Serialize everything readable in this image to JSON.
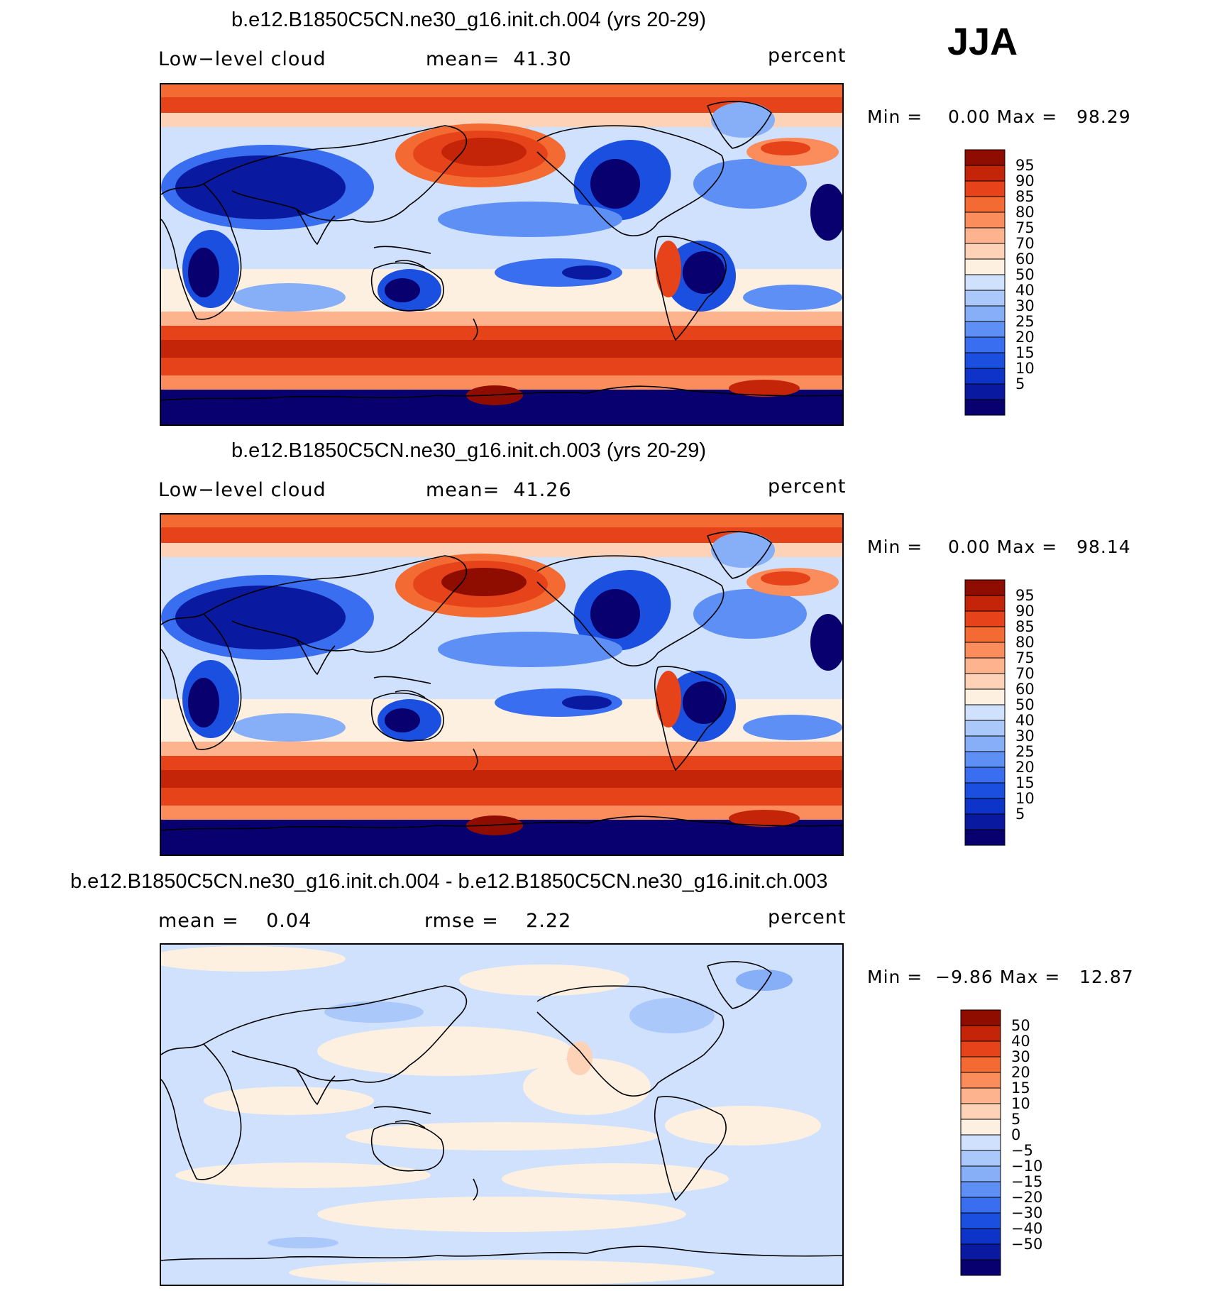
{
  "season": "JJA",
  "colors": {
    "scale": [
      "#08006e",
      "#0a1aa0",
      "#0d33c8",
      "#1a4fe0",
      "#3a6ef0",
      "#5d8ff5",
      "#86aff7",
      "#aac8fa",
      "#cfe1fd",
      "#fdf0e0",
      "#fdd2b6",
      "#fcb38e",
      "#fb8c5c",
      "#f46a33",
      "#e6431a",
      "#c42508",
      "#8e0c00"
    ]
  },
  "panels": [
    {
      "title": "b.e12.B1850C5CN.ne30_g16.init.ch.004 (yrs 20-29)",
      "left_label": "Low−level cloud",
      "mid_label": "mean=  41.30",
      "right_label": "percent",
      "minmax": "Min =    0.00 Max =   98.29",
      "field": "abs"
    },
    {
      "title": "b.e12.B1850C5CN.ne30_g16.init.ch.003 (yrs 20-29)",
      "left_label": "Low−level cloud",
      "mid_label": "mean=  41.26",
      "right_label": "percent",
      "minmax": "Min =    0.00 Max =   98.14",
      "field": "abs"
    },
    {
      "title": "b.e12.B1850C5CN.ne30_g16.init.ch.004 - b.e12.B1850C5CN.ne30_g16.init.ch.003",
      "left_label": "mean =    0.04",
      "mid_label": "rmse =    2.22",
      "right_label": "percent",
      "minmax": "Min =  −9.86 Max =   12.87",
      "field": "diff"
    }
  ],
  "chart_data": [
    {
      "type": "heatmap",
      "title": "b.e12.B1850C5CN.ne30_g16.init.ch.004 (yrs 20-29)",
      "variable": "Low-level cloud",
      "units": "percent",
      "mean": 41.3,
      "min": 0.0,
      "max": 98.29,
      "colorbar_levels": [
        95,
        90,
        85,
        80,
        75,
        70,
        60,
        50,
        40,
        30,
        25,
        20,
        15,
        10,
        5
      ]
    },
    {
      "type": "heatmap",
      "title": "b.e12.B1850C5CN.ne30_g16.init.ch.003 (yrs 20-29)",
      "variable": "Low-level cloud",
      "units": "percent",
      "mean": 41.26,
      "min": 0.0,
      "max": 98.14,
      "colorbar_levels": [
        95,
        90,
        85,
        80,
        75,
        70,
        60,
        50,
        40,
        30,
        25,
        20,
        15,
        10,
        5
      ]
    },
    {
      "type": "heatmap",
      "title": "b.e12.B1850C5CN.ne30_g16.init.ch.004 - b.e12.B1850C5CN.ne30_g16.init.ch.003",
      "units": "percent",
      "mean": 0.04,
      "rmse": 2.22,
      "min": -9.86,
      "max": 12.87,
      "colorbar_levels": [
        "50",
        "40",
        "30",
        "20",
        "15",
        "10",
        "5",
        "0",
        "−5",
        "−10",
        "−15",
        "−20",
        "−30",
        "−40",
        "−50"
      ]
    }
  ]
}
